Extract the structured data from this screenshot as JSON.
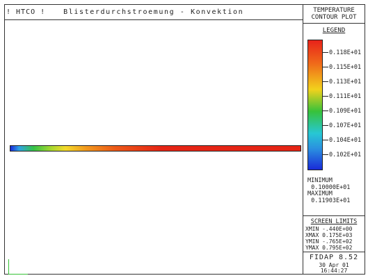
{
  "header": {
    "label": "! HTCO !",
    "title": "Blisterdurchstroemung - Konvektion"
  },
  "side": {
    "title_line1": "TEMPERATURE",
    "title_line2": "CONTOUR PLOT",
    "legend_title": "LEGEND",
    "legend_ticks": [
      "0.118E+01",
      "0.115E+01",
      "0.113E+01",
      "0.111E+01",
      "0.109E+01",
      "0.107E+01",
      "0.104E+01",
      "0.102E+01"
    ],
    "minimum_label": "MINIMUM",
    "minimum_value": "0.10000E+01",
    "maximum_label": "MAXIMUM",
    "maximum_value": "0.11903E+01",
    "screen_limits_title": "SCREEN LIMITS",
    "xmin": "XMIN -.440E+00",
    "xmax": "XMAX 0.175E+03",
    "ymin": "YMIN -.765E+02",
    "ymax": "YMAX 0.795E+02",
    "program": "FIDAP 8.52",
    "date": "30 Apr 01",
    "time": "16:44:27"
  },
  "colors": {
    "colorbar_top": "#e8231a",
    "colorbar_bottom": "#1a2bd8",
    "strip_start": "#1a2bd8",
    "strip_end": "#e52515",
    "axis": "#35c235"
  }
}
